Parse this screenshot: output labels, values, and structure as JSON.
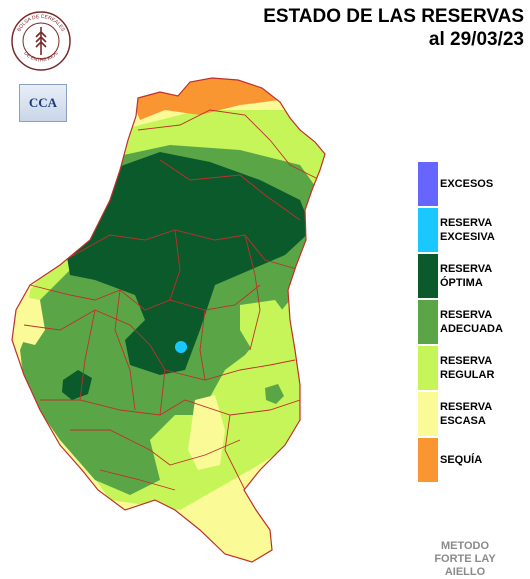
{
  "title": {
    "line1": "ESTADO DE LAS RESERVAS",
    "line2": "al 29/03/23"
  },
  "logos": {
    "seal_text_top": "BOLSA DE CEREALES",
    "seal_text_bottom": "DE ENTRE RIOS",
    "cca_text": "CCA"
  },
  "legend": [
    {
      "label": "EXCESOS",
      "color": "#6666ff"
    },
    {
      "label": "RESERVA\nEXCESIVA",
      "color": "#19c8ff"
    },
    {
      "label": "RESERVA\nÓPTIMA",
      "color": "#0a5a2c"
    },
    {
      "label": "RESERVA\nADECUADA",
      "color": "#5aa646"
    },
    {
      "label": "RESERVA\nREGULAR",
      "color": "#c6f55a"
    },
    {
      "label": "RESERVA\nESCASA",
      "color": "#fafa96"
    },
    {
      "label": "SEQUÍA",
      "color": "#fa9632"
    }
  ],
  "method_text": "METODO\nFORTE LAY\nAIELLO",
  "colors": {
    "border": "#c0302a",
    "sequia": "#fa9632",
    "escasa": "#fafa96",
    "regular": "#c6f55a",
    "adecuada": "#5aa646",
    "optima": "#0a5a2c",
    "excesiva": "#19c8ff"
  }
}
